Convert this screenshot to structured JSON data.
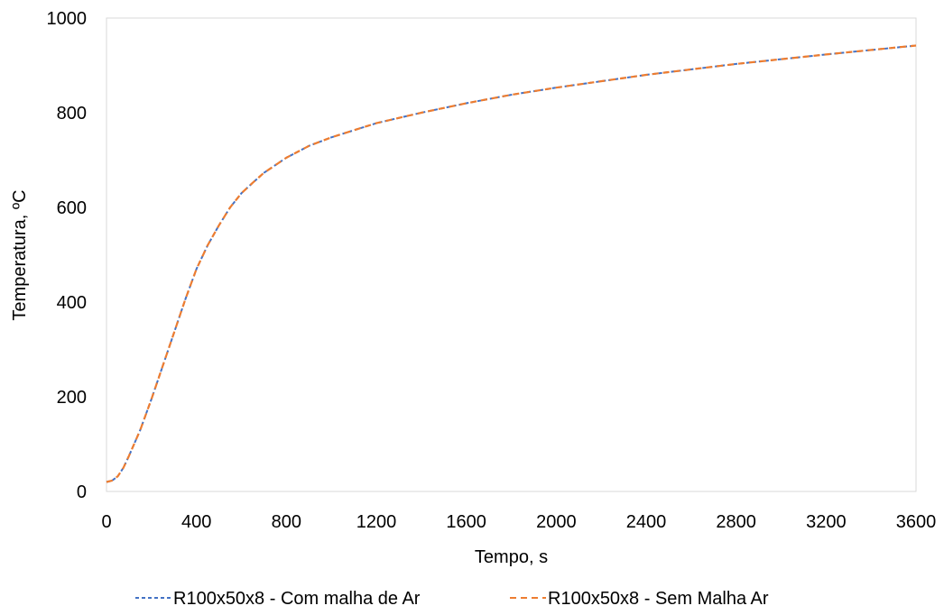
{
  "chart_data": {
    "type": "line",
    "xlabel": "Tempo, s",
    "ylabel": "Temperatura, ºC",
    "xlim": [
      0,
      3600
    ],
    "ylim": [
      0,
      1000
    ],
    "x_ticks": [
      0,
      400,
      800,
      1200,
      1600,
      2000,
      2400,
      2800,
      3200,
      3600
    ],
    "y_ticks": [
      0,
      200,
      400,
      600,
      800,
      1000
    ],
    "grid": false,
    "legend_position": "bottom",
    "series": [
      {
        "name": "R100x50x8 - Com malha de Ar",
        "color": "#4472C4",
        "dash": "dashed",
        "x": [
          0,
          25,
          50,
          75,
          100,
          150,
          200,
          250,
          300,
          350,
          400,
          450,
          500,
          550,
          600,
          650,
          700,
          800,
          900,
          1000,
          1200,
          1400,
          1600,
          1800,
          2000,
          2400,
          2800,
          3200,
          3600
        ],
        "y": [
          20,
          23,
          32,
          50,
          75,
          130,
          195,
          265,
          335,
          405,
          470,
          520,
          562,
          600,
          630,
          652,
          673,
          705,
          730,
          748,
          778,
          800,
          820,
          838,
          853,
          880,
          903,
          923,
          942
        ]
      },
      {
        "name": "R100x50x8 - Sem Malha Ar",
        "color": "#ED7D31",
        "dash": "dashed",
        "x": [
          0,
          25,
          50,
          75,
          100,
          150,
          200,
          250,
          300,
          350,
          400,
          450,
          500,
          550,
          600,
          650,
          700,
          800,
          900,
          1000,
          1200,
          1400,
          1600,
          1800,
          2000,
          2400,
          2800,
          3200,
          3600
        ],
        "y": [
          20,
          23,
          32,
          50,
          75,
          130,
          195,
          265,
          335,
          405,
          470,
          520,
          562,
          600,
          630,
          652,
          673,
          705,
          730,
          748,
          778,
          800,
          820,
          838,
          853,
          880,
          903,
          923,
          942
        ]
      }
    ]
  }
}
